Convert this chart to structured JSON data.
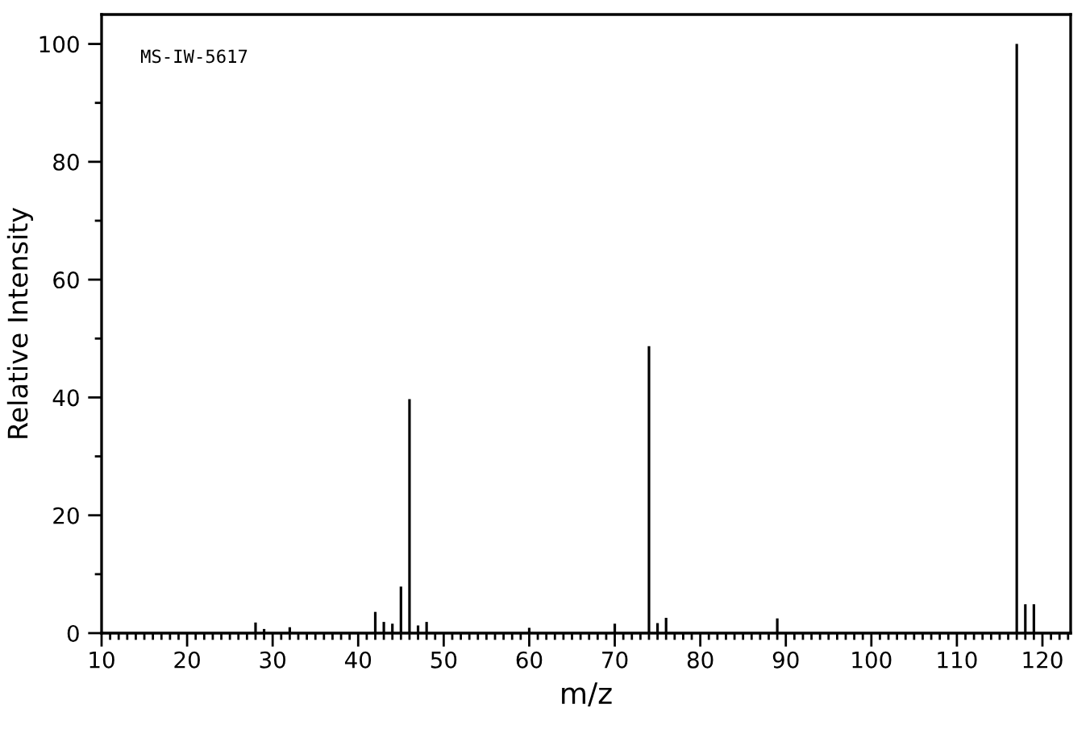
{
  "chart_data": {
    "type": "bar",
    "xlabel": "m/z",
    "ylabel": "Relative Intensity",
    "annotations": [
      "MS-IW-5617"
    ],
    "x": [
      28,
      29,
      32,
      42,
      43,
      44,
      45,
      46,
      47,
      48,
      60,
      70,
      74,
      75,
      76,
      89,
      117,
      118,
      119
    ],
    "values": [
      1.8,
      0.7,
      1.0,
      3.6,
      1.9,
      1.6,
      7.9,
      39.7,
      1.3,
      1.9,
      0.9,
      1.6,
      48.7,
      1.7,
      2.6,
      2.5,
      100,
      4.9,
      4.9
    ],
    "color": "#000000",
    "xlim": [
      10,
      123.3
    ],
    "ylim": [
      0,
      105
    ],
    "xticks": [
      10,
      20,
      30,
      40,
      50,
      60,
      70,
      80,
      90,
      100,
      110,
      120,
      {
        "value": 11,
        "label": null
      },
      {
        "value": 12,
        "label": null
      },
      {
        "value": 13,
        "label": null
      },
      {
        "value": 14,
        "label": null
      },
      {
        "value": 15,
        "label": null
      },
      {
        "value": 16,
        "label": null
      },
      {
        "value": 17,
        "label": null
      },
      {
        "value": 18,
        "label": null
      },
      {
        "value": 19,
        "label": null
      },
      {
        "value": 21,
        "label": null
      },
      {
        "value": 22,
        "label": null
      },
      {
        "value": 23,
        "label": null
      },
      {
        "value": 24,
        "label": null
      },
      {
        "value": 25,
        "label": null
      },
      {
        "value": 26,
        "label": null
      },
      {
        "value": 27,
        "label": null
      },
      {
        "value": 28,
        "label": null
      },
      {
        "value": 29,
        "label": null
      },
      {
        "value": 31,
        "label": null
      },
      {
        "value": 32,
        "label": null
      },
      {
        "value": 33,
        "label": null
      },
      {
        "value": 34,
        "label": null
      },
      {
        "value": 35,
        "label": null
      },
      {
        "value": 36,
        "label": null
      },
      {
        "value": 37,
        "label": null
      },
      {
        "value": 38,
        "label": null
      },
      {
        "value": 39,
        "label": null
      },
      {
        "value": 41,
        "label": null
      },
      {
        "value": 42,
        "label": null
      },
      {
        "value": 43,
        "label": null
      },
      {
        "value": 44,
        "label": null
      },
      {
        "value": 45,
        "label": null
      },
      {
        "value": 46,
        "label": null
      },
      {
        "value": 47,
        "label": null
      },
      {
        "value": 48,
        "label": null
      },
      {
        "value": 49,
        "label": null
      },
      {
        "value": 51,
        "label": null
      },
      {
        "value": 52,
        "label": null
      },
      {
        "value": 53,
        "label": null
      },
      {
        "value": 54,
        "label": null
      },
      {
        "value": 55,
        "label": null
      },
      {
        "value": 56,
        "label": null
      },
      {
        "value": 57,
        "label": null
      },
      {
        "value": 58,
        "label": null
      },
      {
        "value": 59,
        "label": null
      },
      {
        "value": 61,
        "label": null
      },
      {
        "value": 62,
        "label": null
      },
      {
        "value": 63,
        "label": null
      },
      {
        "value": 64,
        "label": null
      },
      {
        "value": 65,
        "label": null
      },
      {
        "value": 66,
        "label": null
      },
      {
        "value": 67,
        "label": null
      },
      {
        "value": 68,
        "label": null
      },
      {
        "value": 69,
        "label": null
      },
      {
        "value": 71,
        "label": null
      },
      {
        "value": 72,
        "label": null
      },
      {
        "value": 73,
        "label": null
      },
      {
        "value": 74,
        "label": null
      },
      {
        "value": 75,
        "label": null
      },
      {
        "value": 76,
        "label": null
      },
      {
        "value": 77,
        "label": null
      },
      {
        "value": 78,
        "label": null
      },
      {
        "value": 79,
        "label": null
      },
      {
        "value": 81,
        "label": null
      },
      {
        "value": 82,
        "label": null
      },
      {
        "value": 83,
        "label": null
      },
      {
        "value": 84,
        "label": null
      },
      {
        "value": 85,
        "label": null
      },
      {
        "value": 86,
        "label": null
      },
      {
        "value": 87,
        "label": null
      },
      {
        "value": 88,
        "label": null
      },
      {
        "value": 89,
        "label": null
      },
      {
        "value": 91,
        "label": null
      },
      {
        "value": 92,
        "label": null
      },
      {
        "value": 93,
        "label": null
      },
      {
        "value": 94,
        "label": null
      },
      {
        "value": 95,
        "label": null
      },
      {
        "value": 96,
        "label": null
      },
      {
        "value": 97,
        "label": null
      },
      {
        "value": 98,
        "label": null
      },
      {
        "value": 99,
        "label": null
      },
      {
        "value": 101,
        "label": null
      },
      {
        "value": 102,
        "label": null
      },
      {
        "value": 103,
        "label": null
      },
      {
        "value": 104,
        "label": null
      },
      {
        "value": 105,
        "label": null
      },
      {
        "value": 106,
        "label": null
      },
      {
        "value": 107,
        "label": null
      },
      {
        "value": 108,
        "label": null
      },
      {
        "value": 109,
        "label": null
      },
      {
        "value": 111,
        "label": null
      },
      {
        "value": 112,
        "label": null
      },
      {
        "value": 113,
        "label": null
      },
      {
        "value": 114,
        "label": null
      },
      {
        "value": 115,
        "label": null
      },
      {
        "value": 116,
        "label": null
      },
      {
        "value": 117,
        "label": null
      },
      {
        "value": 118,
        "label": null
      },
      {
        "value": 119,
        "label": null
      },
      {
        "value": 121,
        "label": null
      },
      {
        "value": 122,
        "label": null
      },
      {
        "value": 123,
        "label": null
      }
    ],
    "yticks": [
      0,
      20,
      40,
      60,
      80,
      100,
      {
        "value": 10,
        "label": null
      },
      {
        "value": 30,
        "label": null
      },
      {
        "value": 50,
        "label": null
      },
      {
        "value": 70,
        "label": null
      },
      {
        "value": 90,
        "label": null
      }
    ],
    "grid": false
  }
}
